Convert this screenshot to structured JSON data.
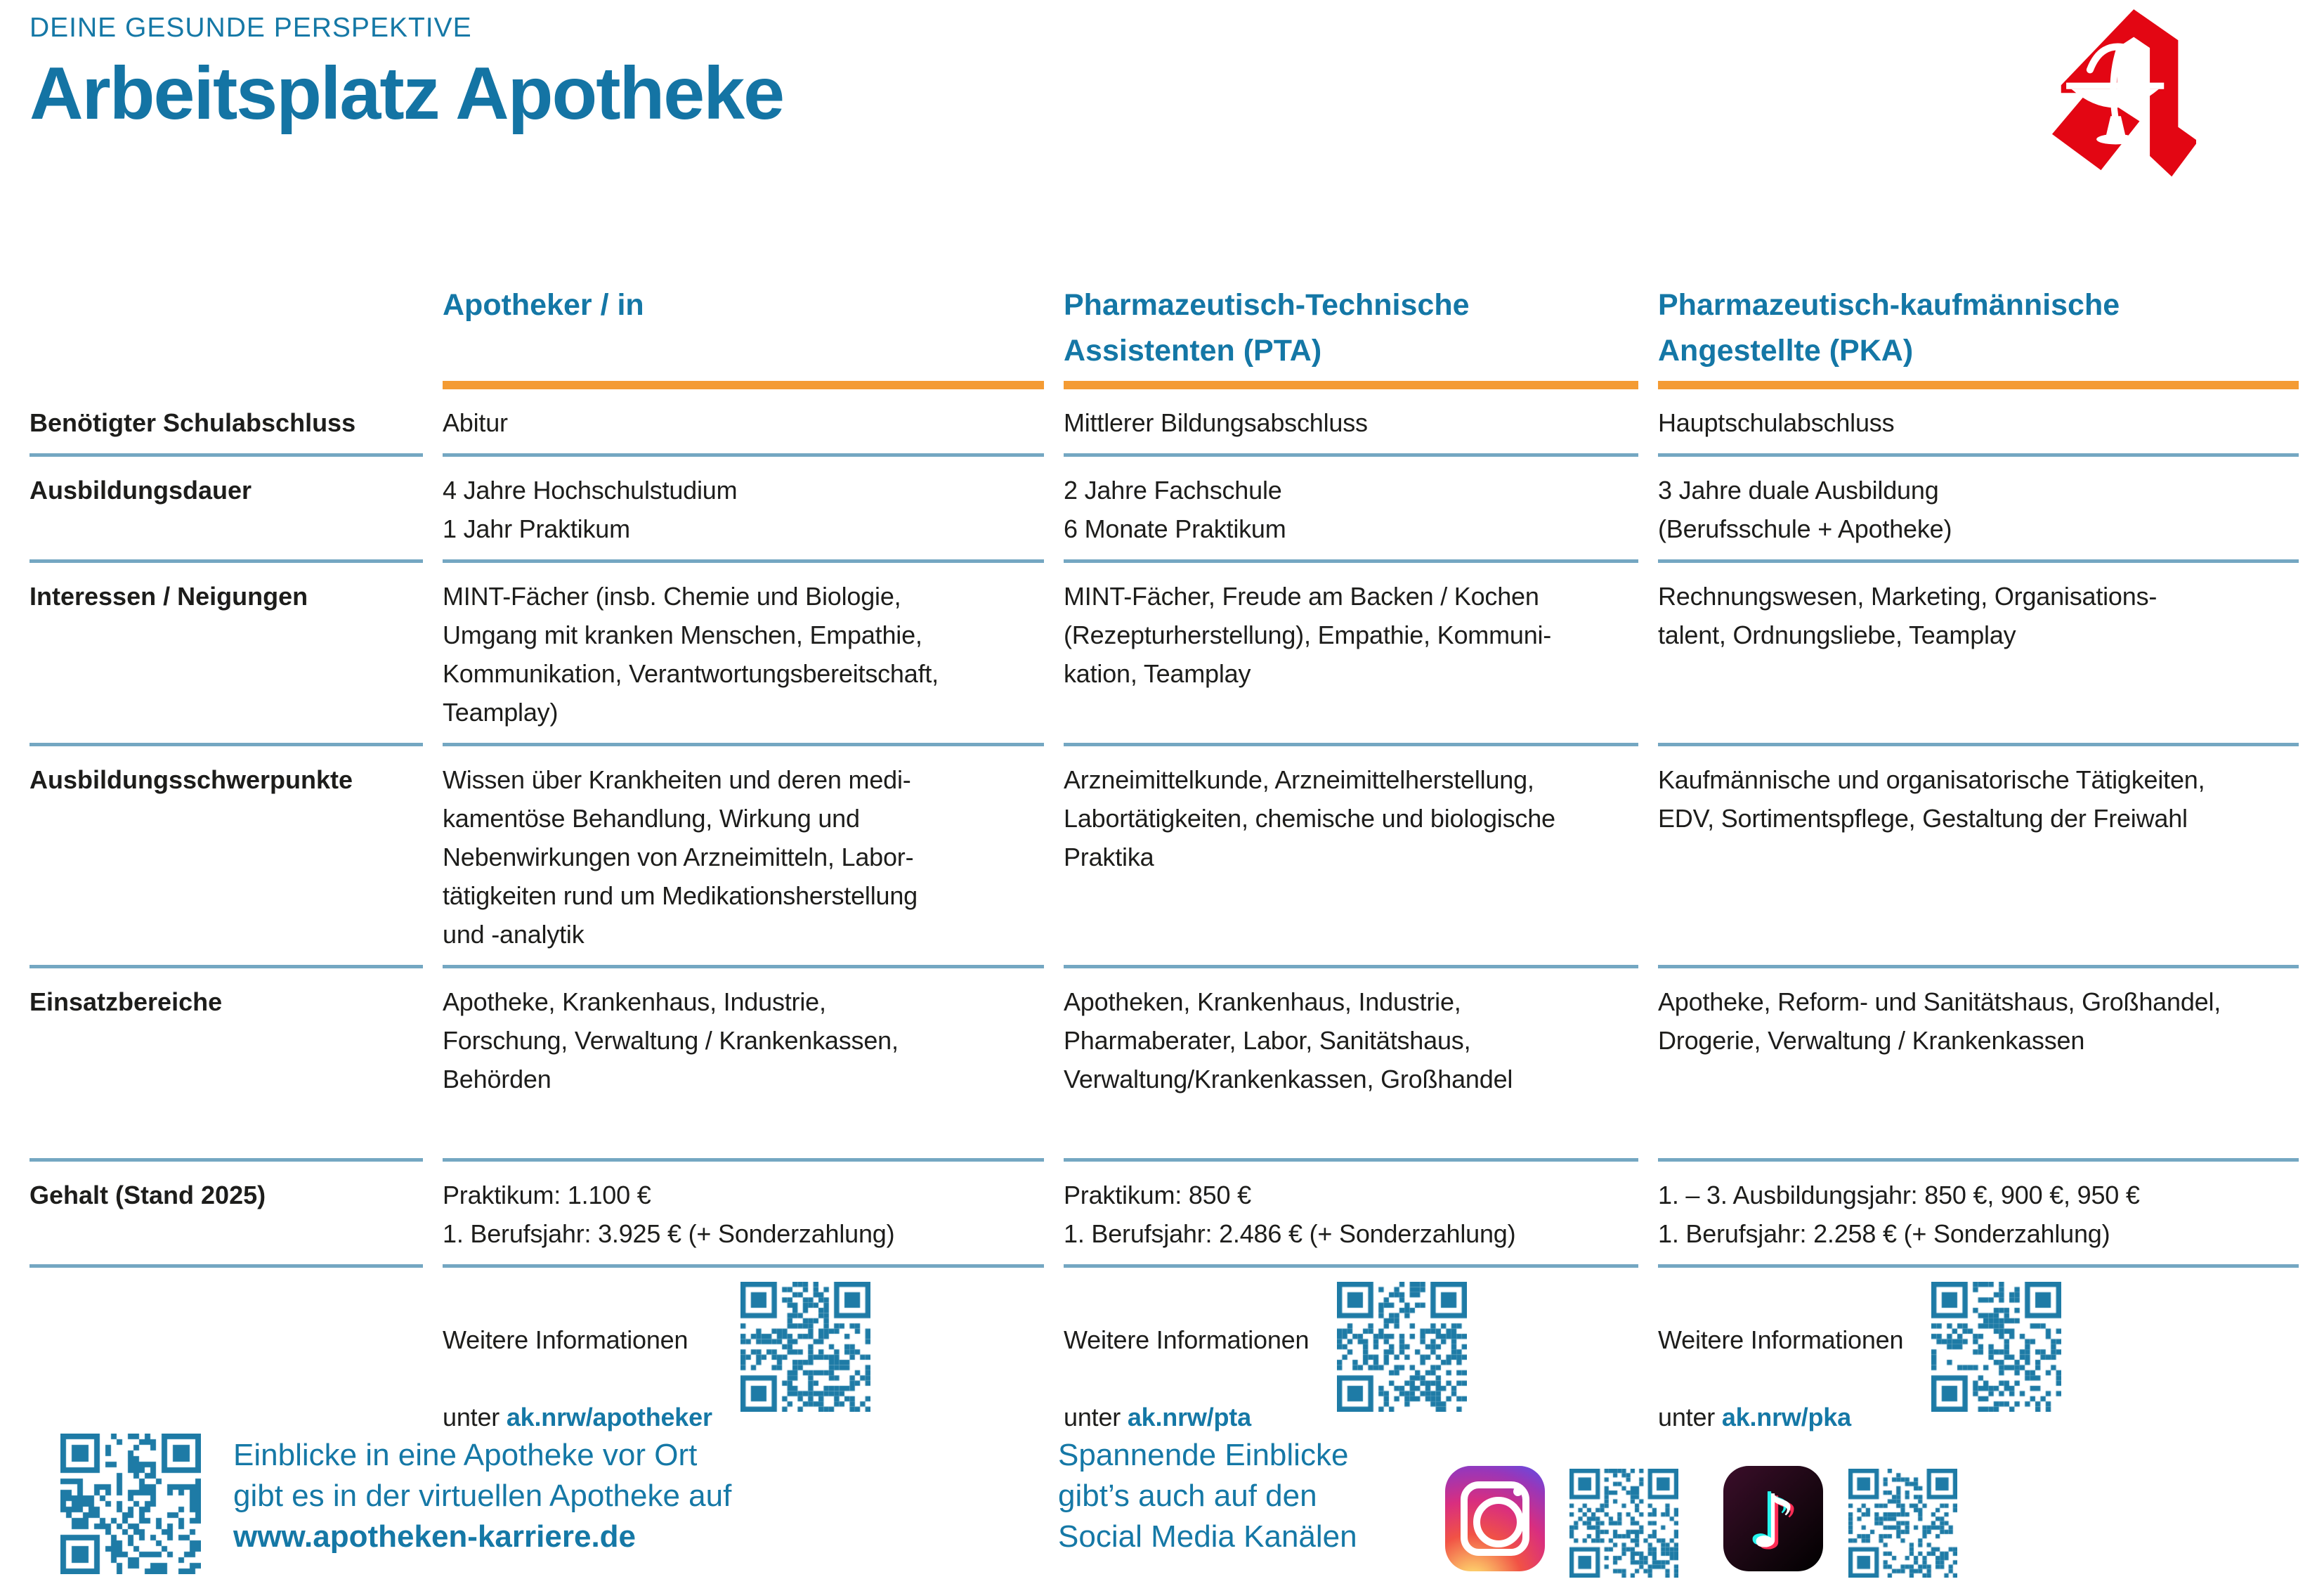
{
  "page": {
    "kicker": "DEINE GESUNDE PERSPEKTIVE",
    "title": "Arbeitsplatz Apotheke"
  },
  "colors": {
    "accent_teal": "#1578a6",
    "heading_blue": "#1474a4",
    "orange_bar": "#f49b33",
    "divider_blue": "#74a7c2",
    "qr_blue": "#1e7ba6",
    "logo_red": "#e30613",
    "body_text": "#1d1d1b"
  },
  "table": {
    "columns": [
      {
        "title": "Apotheker / in"
      },
      {
        "title": "Pharmazeutisch-Technische\nAssistenten (PTA)"
      },
      {
        "title": "Pharmazeutisch-kaufmännische\nAngestellte (PKA)"
      }
    ],
    "rows": [
      {
        "label": "Benötigter Schulabschluss",
        "cells": [
          "Abitur",
          "Mittlerer Bildungsabschluss",
          "Hauptschulabschluss"
        ]
      },
      {
        "label": "Ausbildungsdauer",
        "cells": [
          "4 Jahre Hochschulstudium\n1 Jahr Praktikum",
          "2 Jahre Fachschule\n6 Monate Praktikum",
          "3 Jahre duale Ausbildung\n(Berufsschule + Apotheke)"
        ]
      },
      {
        "label": "Interessen / Neigungen",
        "cells": [
          "MINT-Fächer (insb. Chemie und Biologie,\nUmgang mit kranken Menschen, Empathie,\nKommunikation, Verantwortungsbereitschaft,\nTeamplay)",
          "MINT-Fächer, Freude am Backen / Kochen\n(Rezepturherstellung), Empathie, Kommuni-\nkation, Teamplay",
          "Rechnungswesen, Marketing, Organisations-\ntalent, Ordnungsliebe, Teamplay"
        ]
      },
      {
        "label": "Ausbildungsschwerpunkte",
        "cells": [
          "Wissen über Krankheiten und deren medi-\nkamentöse Behandlung, Wirkung und\nNebenwirkungen von Arzneimitteln, Labor-\ntätigkeiten rund um Medikationsherstellung\nund -analytik",
          "Arzneimittelkunde, Arzneimittelherstellung,\nLabortätigkeiten, chemische und biologische\nPraktika",
          "Kaufmännische und organisatorische Tätigkeiten,\nEDV, Sortimentspflege, Gestaltung der Freiwahl"
        ]
      },
      {
        "label": "Einsatzbereiche",
        "cells": [
          "Apotheke, Krankenhaus, Industrie,\nForschung, Verwaltung / Krankenkassen,\nBehörden",
          "Apotheken, Krankenhaus, Industrie,\nPharmaberater, Labor, Sanitätshaus,\nVerwaltung/Krankenkassen, Großhandel",
          "Apotheke, Reform- und Sanitätshaus, Großhandel,\nDrogerie, Verwaltung / Krankenkassen"
        ]
      },
      {
        "label": "Gehalt (Stand 2025)",
        "cells": [
          "Praktikum: 1.100 €\n1. Berufsjahr: 3.925 € (+ Sonderzahlung)",
          "Praktikum: 850 €\n1. Berufsjahr: 2.486 € (+ Sonderzahlung)",
          "1. – 3. Ausbildungsjahr: 850 €, 900 €, 950 €\n1. Berufsjahr: 2.258 € (+ Sonderzahlung)"
        ]
      }
    ],
    "info": {
      "line1": "Weitere Informationen",
      "prefix": "unter ",
      "links": [
        "ak.nrw/apotheker",
        "ak.nrw/pta",
        "ak.nrw/pka"
      ]
    }
  },
  "footer": {
    "left": {
      "line1": "Einblicke in eine Apotheke vor Ort",
      "line2": "gibt es in der virtuellen Apotheke auf",
      "line3": "www.apotheken-karriere.de"
    },
    "social": {
      "line1": "Spannende Einblicke",
      "line2": "gibt’s auch auf den",
      "line3": "Social Media Kanälen",
      "icons": [
        "instagram-icon",
        "tiktok-icon"
      ]
    }
  }
}
